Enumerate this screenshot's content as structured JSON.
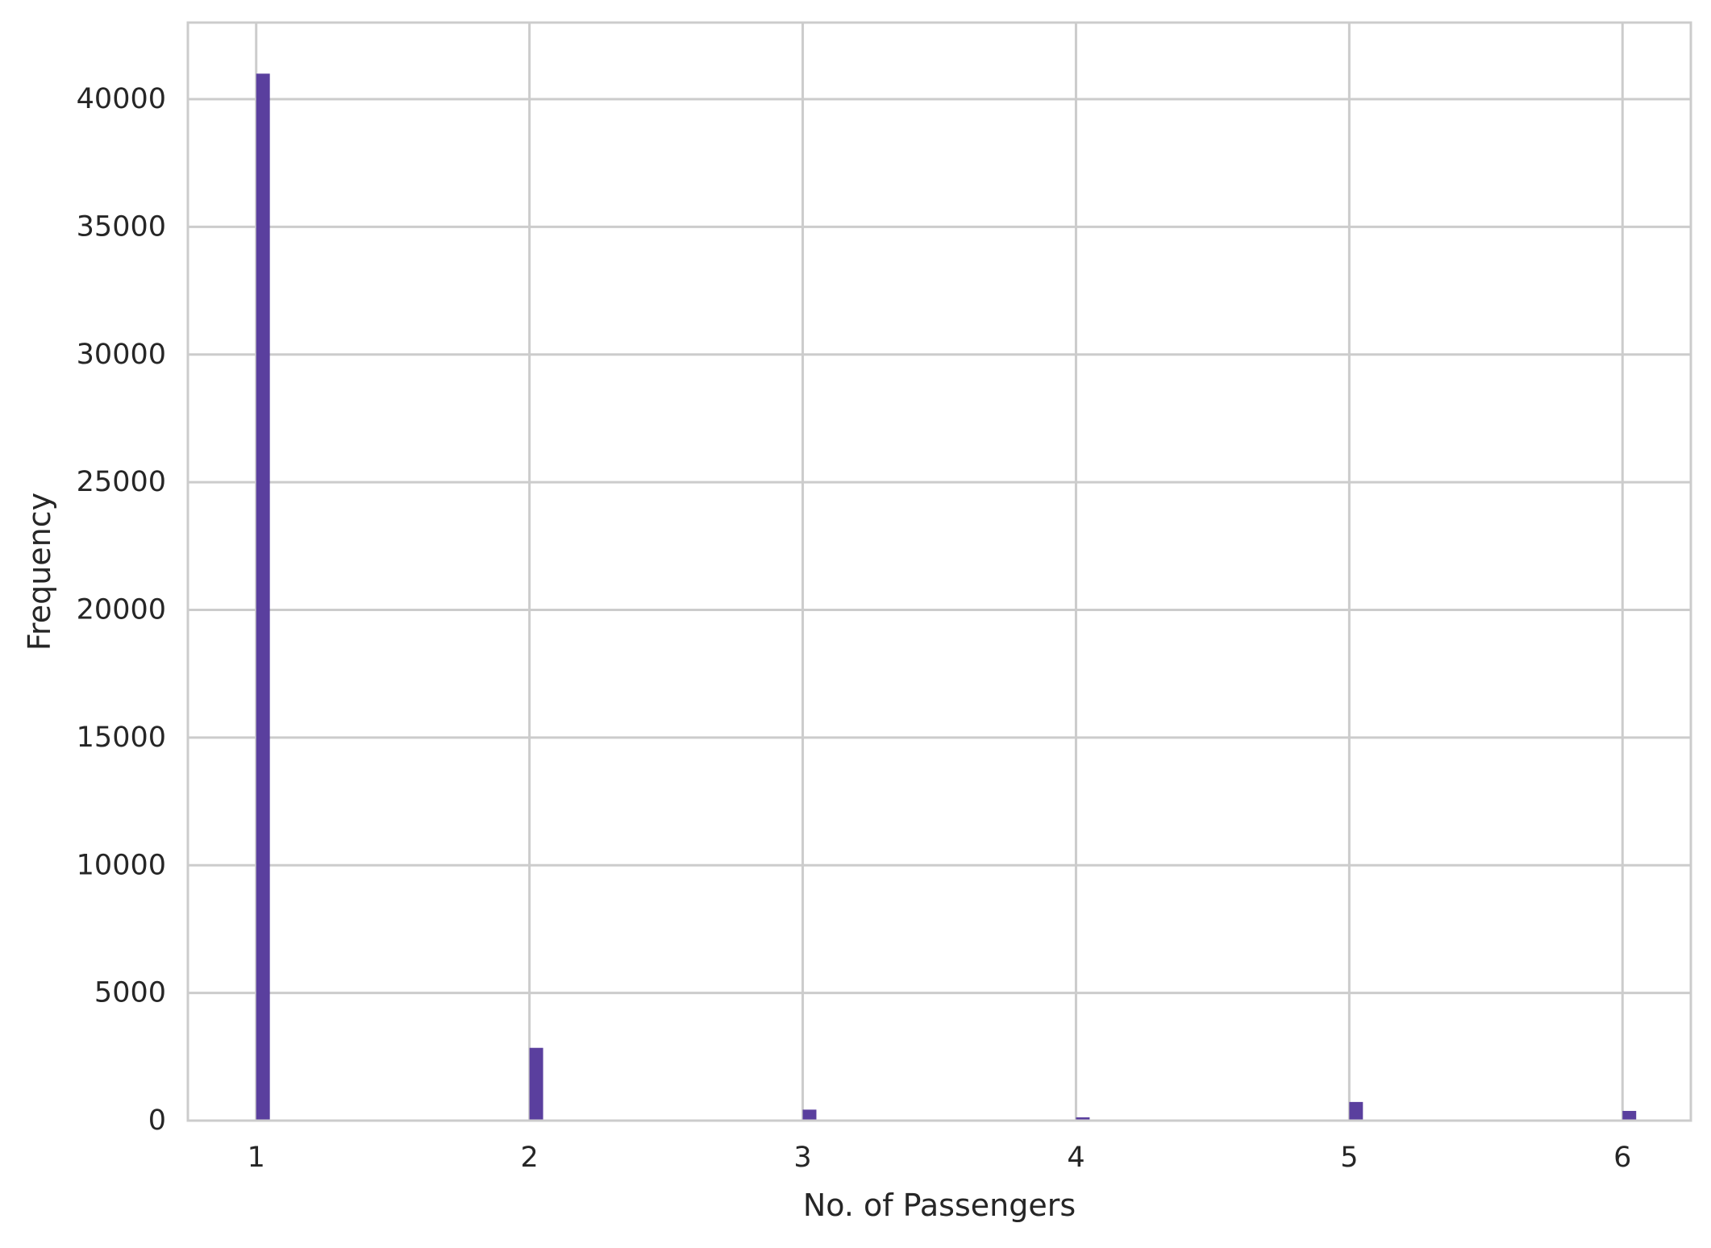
{
  "chart_data": {
    "type": "bar",
    "title": "",
    "xlabel": "No. of Passengers",
    "ylabel": "Frequency",
    "x": [
      1,
      2,
      3,
      4,
      5,
      6
    ],
    "values": [
      41000,
      2850,
      430,
      130,
      730,
      380
    ],
    "xlim": [
      0.75,
      6.25
    ],
    "ylim": [
      0,
      43000
    ],
    "xticks": [
      "1",
      "2",
      "3",
      "4",
      "5",
      "6"
    ],
    "xtick_values": [
      1,
      2,
      3,
      4,
      5,
      6
    ],
    "yticks": [
      "0",
      "5000",
      "10000",
      "15000",
      "20000",
      "25000",
      "30000",
      "35000",
      "40000"
    ],
    "ytick_values": [
      0,
      5000,
      10000,
      15000,
      20000,
      25000,
      30000,
      35000,
      40000
    ],
    "bar_width": 0.05,
    "grid": true,
    "legend": "none",
    "colors": {
      "bar": "#5a3f9e",
      "grid": "#cccccc",
      "frame": "#cccccc",
      "text": "#262626"
    }
  }
}
